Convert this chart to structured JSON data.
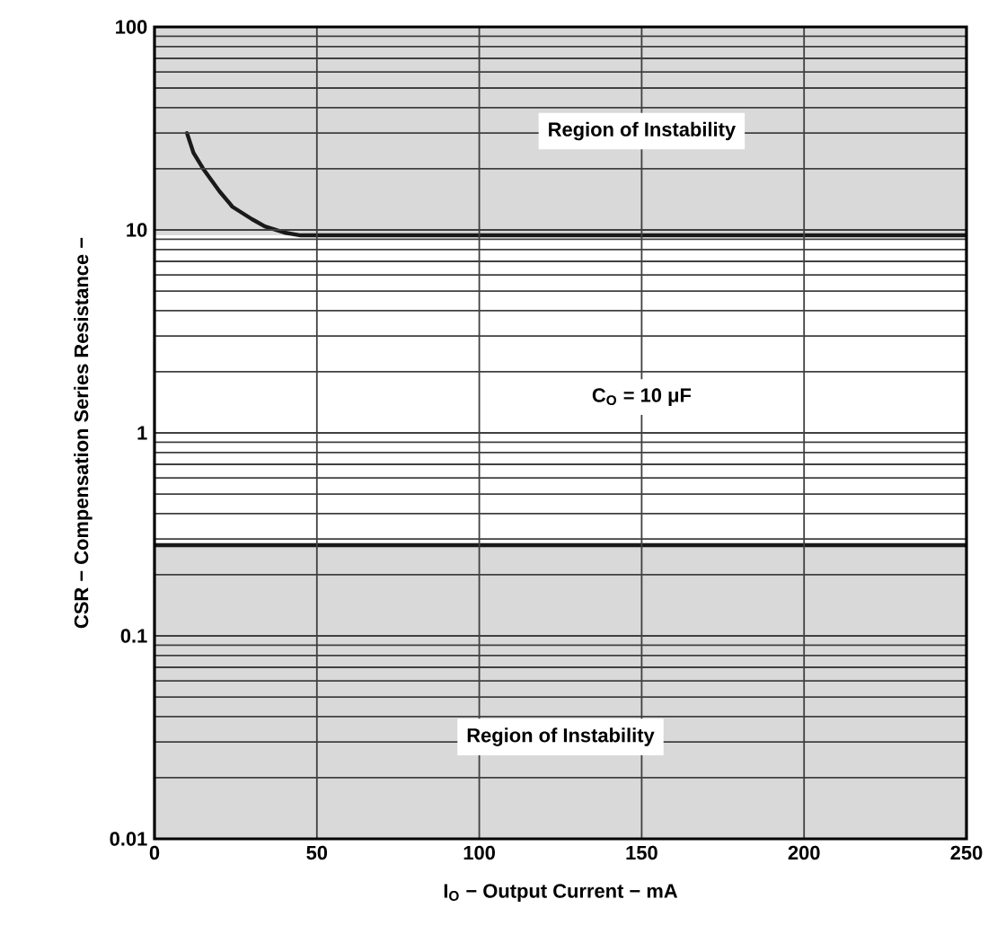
{
  "chart_data": {
    "type": "line",
    "xlabel": "I$_{O}$ − Output Current − mA",
    "ylabel": "CSR − Compensation Series Resistance −",
    "series": [
      {
        "color": "#1a1a1a",
        "x": [
          10,
          12,
          15,
          20,
          24,
          30,
          34,
          40,
          45,
          250
        ],
        "values": [
          30,
          24,
          20,
          15.5,
          13,
          11.3,
          10.4,
          9.7,
          9.4,
          9.4
        ]
      },
      {
        "color": "#1a1a1a",
        "x": [
          0,
          250
        ],
        "values": [
          0.28,
          0.28
        ]
      }
    ],
    "bands": [
      {
        "axis": "y",
        "from": 9.4,
        "to": 100,
        "color": "#d9d9d9",
        "label": "Region of Instability"
      },
      {
        "axis": "y",
        "from": 0.01,
        "to": 0.28,
        "color": "#d9d9d9",
        "label": "Region of Instability"
      }
    ],
    "annotations": [
      "C$_{O}$ = 10 μF"
    ],
    "log": "y",
    "grid": true,
    "marker": "none",
    "line_style": "solid",
    "xlim": [
      0,
      250
    ],
    "xticks": [
      0,
      50,
      100,
      150,
      200,
      250
    ],
    "ylim": [
      0.01,
      100
    ],
    "yticks": [
      0.01,
      0.1,
      1,
      10,
      100
    ]
  }
}
